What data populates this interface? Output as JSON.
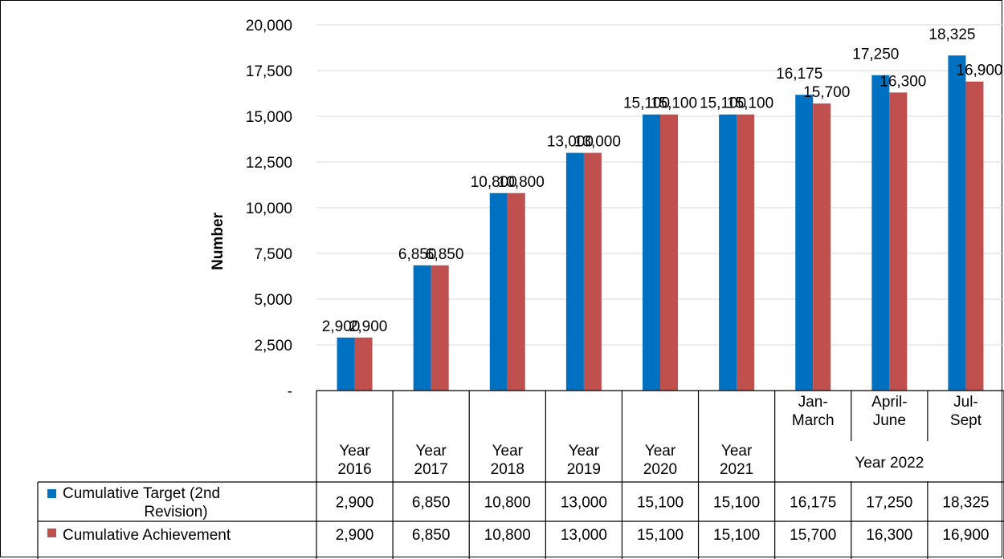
{
  "chart_data": {
    "type": "bar",
    "ylabel": "Number",
    "xlabel": "",
    "ylim": [
      0,
      20000
    ],
    "yticks": [
      "-",
      "2,500",
      "5,000",
      "7,500",
      "10,000",
      "12,500",
      "15,000",
      "17,500",
      "20,000"
    ],
    "ytick_values": [
      0,
      2500,
      5000,
      7500,
      10000,
      12500,
      15000,
      17500,
      20000
    ],
    "grid": true,
    "legend": "table-rows-below",
    "categories": [
      [
        "Year",
        "2016"
      ],
      [
        "Year",
        "2017"
      ],
      [
        "Year",
        "2018"
      ],
      [
        "Year",
        "2019"
      ],
      [
        "Year",
        "2020"
      ],
      [
        "Year",
        "2021"
      ],
      [
        "Jan-",
        "March"
      ],
      [
        "April-",
        "June"
      ],
      [
        "Jul-",
        "Sept"
      ]
    ],
    "group_label": "Year 2022",
    "series": [
      {
        "name": "Cumulative Target (2nd Revision)",
        "name_lines": [
          "Cumulative Target (2nd",
          "Revision)"
        ],
        "color": "#0070C0",
        "values": [
          2900,
          6850,
          10800,
          13000,
          15100,
          15100,
          16175,
          17250,
          18325
        ],
        "labels": [
          "2,900",
          "6,850",
          "10,800",
          "13,000",
          "15,100",
          "15,100",
          "16,175",
          "17,250",
          "18,325"
        ]
      },
      {
        "name": "Cumulative Achievement",
        "name_lines": [
          "Cumulative Achievement"
        ],
        "color": "#C0504D",
        "values": [
          2900,
          6850,
          10800,
          13000,
          15100,
          15100,
          15700,
          16300,
          16900
        ],
        "labels": [
          "2,900",
          "6,850",
          "10,800",
          "13,000",
          "15,100",
          "15,100",
          "15,700",
          "16,300",
          "16,900"
        ]
      }
    ]
  }
}
